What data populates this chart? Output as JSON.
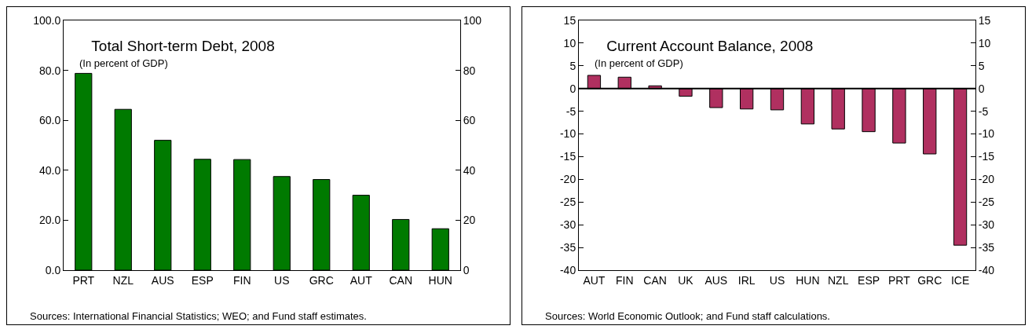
{
  "chart_data": [
    {
      "type": "bar",
      "title": "Total Short-term Debt, 2008",
      "subtitle": "(In percent of GDP)",
      "categories": [
        "PRT",
        "NZL",
        "AUS",
        "ESP",
        "FIN",
        "US",
        "GRC",
        "AUT",
        "CAN",
        "HUN"
      ],
      "series": [
        {
          "color": "#007a00",
          "values": [
            78.8,
            64.4,
            52.0,
            44.4,
            44.3,
            37.5,
            36.3,
            30.0,
            20.3,
            16.6
          ]
        }
      ],
      "ylim": [
        0,
        100
      ],
      "yticks": [
        {
          "value": 0,
          "label": "0.0"
        },
        {
          "value": 20,
          "label": "20.0"
        },
        {
          "value": 40,
          "label": "40.0"
        },
        {
          "value": 60,
          "label": "60.0"
        },
        {
          "value": 80,
          "label": "80.0"
        },
        {
          "value": 100,
          "label": "100.0"
        }
      ],
      "y2lim": [
        0,
        100
      ],
      "y2ticks": [
        0,
        20,
        40,
        60,
        80,
        100
      ],
      "annotations": [
        "Sources: International Financial Statistics; WEO; and Fund staff estimates."
      ]
    },
    {
      "type": "bar",
      "title": "Current Account Balance, 2008",
      "subtitle": "(In percent of GDP)",
      "categories": [
        "AUT",
        "FIN",
        "CAN",
        "UK",
        "AUS",
        "IRL",
        "US",
        "HUN",
        "NZL",
        "ESP",
        "PRT",
        "GRC",
        "ICE"
      ],
      "series": [
        {
          "color": "#b03060",
          "values": [
            2.9,
            2.5,
            0.6,
            -1.7,
            -4.2,
            -4.5,
            -4.7,
            -7.8,
            -8.9,
            -9.5,
            -12.0,
            -14.4,
            -34.5
          ]
        }
      ],
      "ylim": [
        -40,
        15
      ],
      "yticks": [
        -40,
        -35,
        -30,
        -25,
        -20,
        -15,
        -10,
        -5,
        0,
        5,
        10,
        15
      ],
      "y2lim": [
        -40,
        15
      ],
      "y2ticks": [
        -40,
        -35,
        -30,
        -25,
        -20,
        -15,
        -10,
        -5,
        0,
        5,
        10,
        15
      ],
      "ref_lines": [
        {
          "axis": "y",
          "value": 0
        }
      ],
      "annotations": [
        "Sources: World Economic Outlook; and Fund staff calculations."
      ]
    }
  ]
}
